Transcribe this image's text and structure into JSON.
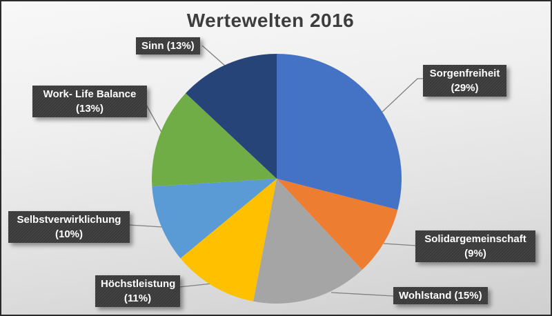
{
  "title": "Wertewelten 2016",
  "chart_data": {
    "type": "pie",
    "title": "Wertewelten 2016",
    "unit": "percent",
    "direction": "clockwise",
    "start_angle_deg": 0,
    "legend": "none",
    "label_style": "callout-boxes",
    "callout_box_color": "#3b3b3b",
    "callout_text_color": "#ffffff",
    "leader_line_color": "#7f7f7f",
    "title_color": "#3d3d3d",
    "slices": [
      {
        "id": "sorgenfreiheit",
        "label": "Sorgenfreiheit",
        "value": 29,
        "color": "#4472C4",
        "callout_line1": "Sorgenfreiheit",
        "callout_line2": "(29%)"
      },
      {
        "id": "solidargemeinschaft",
        "label": "Solidargemeinschaft",
        "value": 9,
        "color": "#ED7D31",
        "callout_line1": "Solidargemeinschaft",
        "callout_line2": "(9%)"
      },
      {
        "id": "wohlstand",
        "label": "Wohlstand",
        "value": 15,
        "color": "#A5A5A5",
        "callout_line1": "Wohlstand (15%)",
        "callout_line2": ""
      },
      {
        "id": "hoechstleistung",
        "label": "Höchstleistung",
        "value": 11,
        "color": "#FFC000",
        "callout_line1": "Höchstleistung",
        "callout_line2": "(11%)"
      },
      {
        "id": "selbstverwirklichung",
        "label": "Selbstverwirklichung",
        "value": 10,
        "color": "#5B9BD5",
        "callout_line1": "Selbstverwirklichung",
        "callout_line2": "(10%)"
      },
      {
        "id": "work-life-balance",
        "label": "Work- Life Balance",
        "value": 13,
        "color": "#70AD47",
        "callout_line1": "Work- Life Balance",
        "callout_line2": "(13%)"
      },
      {
        "id": "sinn",
        "label": "Sinn",
        "value": 13,
        "color": "#264478",
        "callout_line1": "Sinn (13%)",
        "callout_line2": ""
      }
    ]
  }
}
